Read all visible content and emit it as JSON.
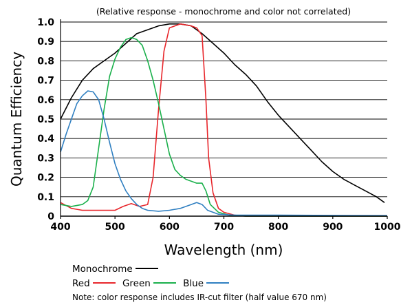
{
  "chart_data": {
    "type": "line",
    "subtitle": "(Relative response - monochrome and color not correlated)",
    "xlabel": "Wavelength (nm)",
    "ylabel": "Quantum Efficiency",
    "xlim": [
      400,
      1000
    ],
    "ylim": [
      0,
      1.0
    ],
    "grid": "horizontal",
    "x_ticks": [
      "400",
      "500",
      "600",
      "700",
      "800",
      "900",
      "1000"
    ],
    "y_ticks": [
      "0",
      "0.1",
      "0.2",
      "0.3",
      "0.4",
      "0.5",
      "0.6",
      "0.7",
      "0.8",
      "0.9",
      "1.0"
    ],
    "series": [
      {
        "name": "Monochrome",
        "color": "#000000",
        "points": [
          [
            400,
            0.5
          ],
          [
            420,
            0.61
          ],
          [
            440,
            0.7
          ],
          [
            460,
            0.76
          ],
          [
            480,
            0.8
          ],
          [
            500,
            0.84
          ],
          [
            520,
            0.89
          ],
          [
            540,
            0.94
          ],
          [
            560,
            0.96
          ],
          [
            580,
            0.98
          ],
          [
            600,
            0.99
          ],
          [
            620,
            0.99
          ],
          [
            640,
            0.98
          ],
          [
            660,
            0.94
          ],
          [
            680,
            0.89
          ],
          [
            700,
            0.84
          ],
          [
            720,
            0.78
          ],
          [
            740,
            0.73
          ],
          [
            760,
            0.67
          ],
          [
            780,
            0.59
          ],
          [
            800,
            0.52
          ],
          [
            820,
            0.46
          ],
          [
            840,
            0.4
          ],
          [
            860,
            0.34
          ],
          [
            880,
            0.28
          ],
          [
            900,
            0.23
          ],
          [
            920,
            0.19
          ],
          [
            940,
            0.16
          ],
          [
            960,
            0.13
          ],
          [
            980,
            0.1
          ],
          [
            995,
            0.07
          ]
        ]
      },
      {
        "name": "Red",
        "color": "#e8262b",
        "points": [
          [
            400,
            0.07
          ],
          [
            420,
            0.04
          ],
          [
            440,
            0.03
          ],
          [
            460,
            0.03
          ],
          [
            480,
            0.03
          ],
          [
            500,
            0.03
          ],
          [
            515,
            0.05
          ],
          [
            530,
            0.065
          ],
          [
            545,
            0.05
          ],
          [
            560,
            0.06
          ],
          [
            570,
            0.2
          ],
          [
            580,
            0.55
          ],
          [
            590,
            0.85
          ],
          [
            600,
            0.97
          ],
          [
            620,
            0.99
          ],
          [
            640,
            0.98
          ],
          [
            650,
            0.97
          ],
          [
            660,
            0.93
          ],
          [
            667,
            0.6
          ],
          [
            672,
            0.3
          ],
          [
            680,
            0.12
          ],
          [
            690,
            0.04
          ],
          [
            700,
            0.02
          ],
          [
            720,
            0.005
          ],
          [
            740,
            0.0
          ],
          [
            1000,
            0.0
          ]
        ]
      },
      {
        "name": "Green",
        "color": "#1ab04b",
        "points": [
          [
            400,
            0.06
          ],
          [
            420,
            0.05
          ],
          [
            440,
            0.06
          ],
          [
            450,
            0.08
          ],
          [
            460,
            0.15
          ],
          [
            470,
            0.35
          ],
          [
            480,
            0.55
          ],
          [
            490,
            0.72
          ],
          [
            500,
            0.81
          ],
          [
            510,
            0.87
          ],
          [
            520,
            0.91
          ],
          [
            530,
            0.92
          ],
          [
            540,
            0.91
          ],
          [
            550,
            0.88
          ],
          [
            560,
            0.8
          ],
          [
            570,
            0.7
          ],
          [
            580,
            0.58
          ],
          [
            590,
            0.45
          ],
          [
            600,
            0.32
          ],
          [
            610,
            0.24
          ],
          [
            620,
            0.21
          ],
          [
            630,
            0.19
          ],
          [
            640,
            0.18
          ],
          [
            650,
            0.17
          ],
          [
            660,
            0.17
          ],
          [
            667,
            0.13
          ],
          [
            675,
            0.06
          ],
          [
            690,
            0.02
          ],
          [
            710,
            0.005
          ],
          [
            740,
            0.0
          ],
          [
            1000,
            0.0
          ]
        ]
      },
      {
        "name": "Blue",
        "color": "#2f7fc1",
        "points": [
          [
            400,
            0.33
          ],
          [
            410,
            0.42
          ],
          [
            420,
            0.5
          ],
          [
            430,
            0.58
          ],
          [
            440,
            0.62
          ],
          [
            450,
            0.645
          ],
          [
            460,
            0.64
          ],
          [
            470,
            0.6
          ],
          [
            480,
            0.5
          ],
          [
            490,
            0.38
          ],
          [
            500,
            0.27
          ],
          [
            510,
            0.19
          ],
          [
            520,
            0.13
          ],
          [
            530,
            0.09
          ],
          [
            540,
            0.06
          ],
          [
            550,
            0.04
          ],
          [
            560,
            0.03
          ],
          [
            580,
            0.025
          ],
          [
            600,
            0.03
          ],
          [
            620,
            0.04
          ],
          [
            640,
            0.06
          ],
          [
            650,
            0.07
          ],
          [
            660,
            0.06
          ],
          [
            670,
            0.03
          ],
          [
            690,
            0.01
          ],
          [
            720,
            0.005
          ],
          [
            800,
            0.005
          ],
          [
            1000,
            0.003
          ]
        ]
      }
    ]
  },
  "legend": {
    "monochrome": "Monochrome",
    "red": "Red",
    "green": "Green",
    "blue": "Blue"
  },
  "note": "Note: color response includes IR-cut filter (half value 670 nm)"
}
